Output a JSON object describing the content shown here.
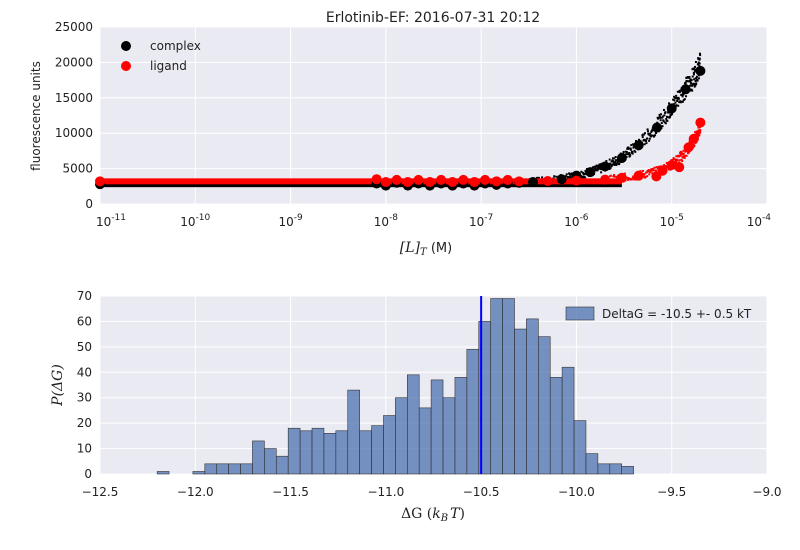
{
  "chart_data": [
    {
      "type": "scatter",
      "title": "Erlotinib-EF: 2016-07-31 20:12",
      "xlabel": "[L]_T (M)",
      "xlabel_math": "[L]",
      "xlabel_sub": "T",
      "xlabel_unit": " (M)",
      "ylabel": "fluorescence units",
      "xscale": "log",
      "xlim": [
        1e-11,
        0.0001
      ],
      "ylim": [
        0,
        25000
      ],
      "x_ticks": [
        {
          "value": 1e-11,
          "base": "10",
          "exp": "-11"
        },
        {
          "value": 1e-10,
          "base": "10",
          "exp": "-10"
        },
        {
          "value": 1e-09,
          "base": "10",
          "exp": "-9"
        },
        {
          "value": 1e-08,
          "base": "10",
          "exp": "-8"
        },
        {
          "value": 1e-07,
          "base": "10",
          "exp": "-7"
        },
        {
          "value": 1e-06,
          "base": "10",
          "exp": "-6"
        },
        {
          "value": 1e-05,
          "base": "10",
          "exp": "-5"
        },
        {
          "value": 0.0001,
          "base": "10",
          "exp": "-4"
        }
      ],
      "y_ticks": [
        {
          "value": 0,
          "label": "0"
        },
        {
          "value": 5000,
          "label": "5000"
        },
        {
          "value": 10000,
          "label": "10000"
        },
        {
          "value": 15000,
          "label": "15000"
        },
        {
          "value": 20000,
          "label": "20000"
        },
        {
          "value": 25000,
          "label": "25000"
        }
      ],
      "grid": true,
      "legend_position": "top-left",
      "series": [
        {
          "name": "complex",
          "color": "#000000",
          "points": [
            [
              1e-11,
              2800
            ],
            [
              8e-09,
              2900
            ],
            [
              1e-08,
              2600
            ],
            [
              1.3e-08,
              3000
            ],
            [
              1.7e-08,
              2600
            ],
            [
              2.2e-08,
              2900
            ],
            [
              2.9e-08,
              2600
            ],
            [
              3.8e-08,
              2900
            ],
            [
              5e-08,
              2600
            ],
            [
              6.5e-08,
              2900
            ],
            [
              8.5e-08,
              2600
            ],
            [
              1.1e-07,
              2900
            ],
            [
              1.45e-07,
              2700
            ],
            [
              1.9e-07,
              2900
            ],
            [
              2.5e-07,
              3000
            ],
            [
              3.5e-07,
              3100
            ],
            [
              5e-07,
              3200
            ],
            [
              7e-07,
              3500
            ],
            [
              1e-06,
              4000
            ],
            [
              1.4e-06,
              4500
            ],
            [
              2e-06,
              5300
            ],
            [
              3e-06,
              6500
            ],
            [
              4.5e-06,
              8300
            ],
            [
              7e-06,
              10800
            ],
            [
              1e-05,
              13500
            ],
            [
              1.4e-05,
              16200
            ],
            [
              2e-05,
              18800
            ]
          ],
          "cloud": [
            [
              3e-07,
              3100
            ],
            [
              5e-07,
              3300
            ],
            [
              8e-07,
              3700
            ],
            [
              1.2e-06,
              4300
            ],
            [
              1.8e-06,
              5000
            ],
            [
              2.7e-06,
              6200
            ],
            [
              4e-06,
              7800
            ],
            [
              6e-06,
              10000
            ],
            [
              9e-06,
              12800
            ],
            [
              1.3e-05,
              15800
            ],
            [
              1.7e-05,
              17800
            ],
            [
              2e-05,
              19800
            ]
          ]
        },
        {
          "name": "ligand",
          "color": "#ff0000",
          "points": [
            [
              1e-11,
              3200
            ],
            [
              8e-09,
              3500
            ],
            [
              1e-08,
              3100
            ],
            [
              1.3e-08,
              3400
            ],
            [
              1.7e-08,
              3100
            ],
            [
              2.2e-08,
              3400
            ],
            [
              2.9e-08,
              3100
            ],
            [
              3.8e-08,
              3400
            ],
            [
              5e-08,
              3100
            ],
            [
              6.5e-08,
              3400
            ],
            [
              8.5e-08,
              3100
            ],
            [
              1.1e-07,
              3400
            ],
            [
              1.45e-07,
              3200
            ],
            [
              1.9e-07,
              3400
            ],
            [
              2.5e-07,
              3200
            ],
            [
              5e-07,
              3250
            ],
            [
              1e-06,
              3300
            ],
            [
              2e-06,
              3450
            ],
            [
              3e-06,
              3700
            ],
            [
              4.5e-06,
              4000
            ],
            [
              6.9e-06,
              3900
            ],
            [
              8e-06,
              4700
            ],
            [
              1e-05,
              5500
            ],
            [
              1.2e-05,
              5200
            ],
            [
              1.5e-05,
              8000
            ],
            [
              1.7e-05,
              9200
            ],
            [
              2e-05,
              11500
            ]
          ],
          "cloud": [
            [
              2e-06,
              3400
            ],
            [
              4e-06,
              3900
            ],
            [
              7e-06,
              4600
            ],
            [
              1e-05,
              5600
            ],
            [
              1.4e-05,
              7200
            ],
            [
              1.8e-05,
              9500
            ],
            [
              2e-05,
              11000
            ]
          ]
        }
      ]
    },
    {
      "type": "bar",
      "subtype": "histogram",
      "xlabel": "ΔG (k_B T)",
      "xlabel_main": "ΔG (",
      "xlabel_k": "k",
      "xlabel_sub": "B",
      "xlabel_T": "T",
      "xlabel_close": ")",
      "ylabel": "P(ΔG)",
      "xlim": [
        -12.5,
        -9.0
      ],
      "ylim": [
        0,
        70
      ],
      "x_ticks": [
        {
          "value": -12.5,
          "label": "−12.5"
        },
        {
          "value": -12.0,
          "label": "−12.0"
        },
        {
          "value": -11.5,
          "label": "−11.5"
        },
        {
          "value": -11.0,
          "label": "−11.0"
        },
        {
          "value": -10.5,
          "label": "−10.5"
        },
        {
          "value": -10.0,
          "label": "−10.0"
        },
        {
          "value": -9.5,
          "label": "−9.5"
        },
        {
          "value": -9.0,
          "label": "−9.0"
        }
      ],
      "y_ticks": [
        {
          "value": 0,
          "label": "0"
        },
        {
          "value": 10,
          "label": "10"
        },
        {
          "value": 20,
          "label": "20"
        },
        {
          "value": 30,
          "label": "30"
        },
        {
          "value": 40,
          "label": "40"
        },
        {
          "value": 50,
          "label": "50"
        },
        {
          "value": 60,
          "label": "60"
        },
        {
          "value": 70,
          "label": "70"
        }
      ],
      "grid": true,
      "legend_position": "top-right",
      "bar_color": "#4c72b0",
      "vline_color": "#0000ff",
      "vline_value": -10.5,
      "series": [
        {
          "name": "DeltaG = -10.5 +- 0.5 kT",
          "bin_start": -12.2,
          "bin_width": 0.0625,
          "values": [
            1,
            0,
            0,
            1,
            4,
            4,
            4,
            4,
            13,
            10,
            7,
            18,
            17,
            18,
            16,
            17,
            33,
            17,
            19,
            23,
            30,
            39,
            26,
            37,
            30,
            38,
            49,
            60,
            69,
            69,
            57,
            61,
            54,
            38,
            42,
            21,
            8,
            4,
            4,
            3
          ]
        }
      ]
    }
  ]
}
